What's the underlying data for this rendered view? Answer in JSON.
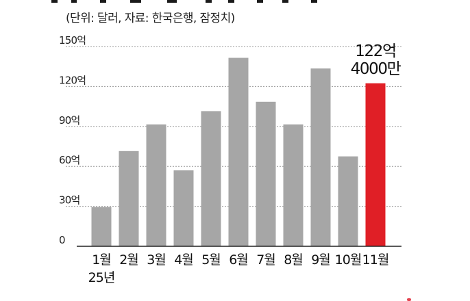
{
  "subtitle": "(단위: 달러, 자료: 한국은행, 잠정치)",
  "chart_data": {
    "type": "bar",
    "title": "",
    "xlabel": "",
    "ylabel": "",
    "categories": [
      "1월",
      "2월",
      "3월",
      "4월",
      "5월",
      "6월",
      "7월",
      "8월",
      "9월",
      "10월",
      "11월"
    ],
    "year_label": "25년",
    "values": [
      29.5,
      71.5,
      91.5,
      57.0,
      101.5,
      141.5,
      108.5,
      91.5,
      133.5,
      67.5,
      122.4
    ],
    "ylim": [
      0,
      150
    ],
    "yticks": [
      0,
      30,
      60,
      90,
      120,
      150
    ],
    "ytick_labels": [
      "0",
      "30억",
      "60억",
      "90억",
      "120억",
      "150억"
    ],
    "grid": true,
    "bar_color": "#a6a6a6",
    "highlight_color": "#e01f26",
    "highlight_index": 10,
    "annotation": [
      "122억",
      "4000만"
    ]
  }
}
